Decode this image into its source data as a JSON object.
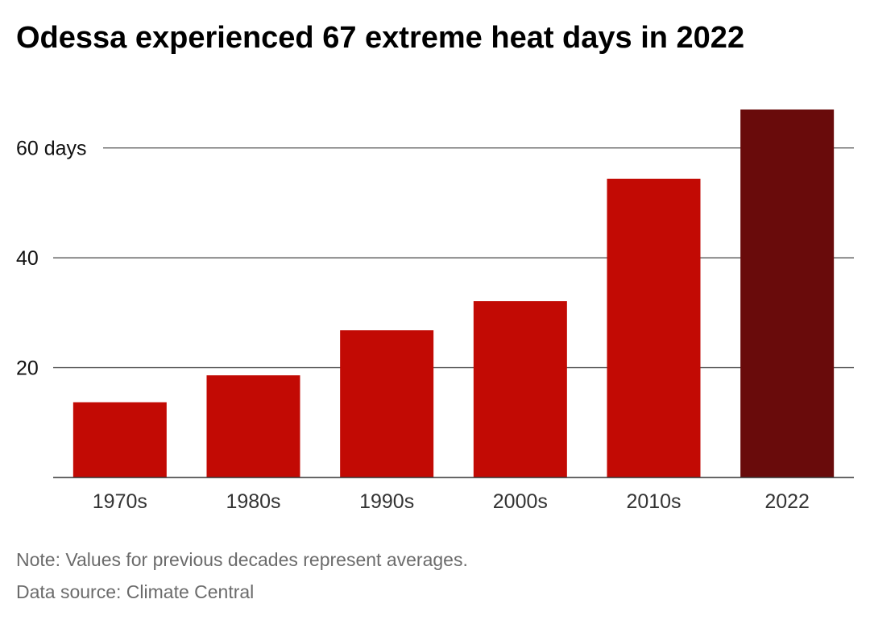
{
  "title": "Odessa experienced 67 extreme heat days in 2022",
  "note": "Note: Values for previous decades represent averages.",
  "source": "Data source: Climate Central",
  "chart_data": {
    "type": "bar",
    "title": "Odessa experienced 67 extreme heat days in 2022",
    "xlabel": "",
    "ylabel": "",
    "categories": [
      "1970s",
      "1980s",
      "1990s",
      "2000s",
      "2010s",
      "2022"
    ],
    "values": [
      13.7,
      18.6,
      26.8,
      32.1,
      54.4,
      67
    ],
    "ylim": [
      0,
      67
    ],
    "yticks": [
      {
        "value": 20,
        "label": "20"
      },
      {
        "value": 40,
        "label": "40"
      },
      {
        "value": 60,
        "label": "60 days"
      }
    ],
    "grid": true,
    "legend": "none",
    "colors": {
      "bar": "#c20a04",
      "highlight": "#690b0b",
      "grid": "#555555",
      "tick_text": "#333333"
    },
    "highlight_category": "2022"
  }
}
